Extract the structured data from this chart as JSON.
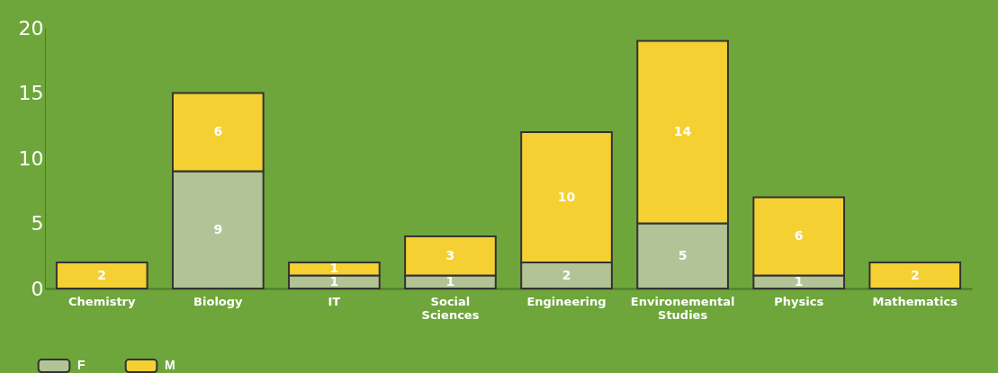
{
  "chart_data": {
    "type": "bar",
    "stacked": true,
    "data_labels": true,
    "legend": "bottom left",
    "categories": [
      "Chemistry",
      "Biology",
      "IT",
      "Social Sciences",
      "Engineering",
      "Environemental Studies",
      "Physics",
      "Mathematics"
    ],
    "series": [
      {
        "name": "F",
        "color": "#b2c396",
        "values": [
          null,
          9,
          1,
          1,
          2,
          5,
          1,
          null
        ]
      },
      {
        "name": "M",
        "color": "#f5d033",
        "values": [
          2,
          6,
          1,
          3,
          10,
          14,
          6,
          2
        ]
      }
    ],
    "ylim": [
      0,
      20
    ],
    "yticks": [
      0,
      5,
      10,
      15,
      20
    ],
    "grid": false
  }
}
